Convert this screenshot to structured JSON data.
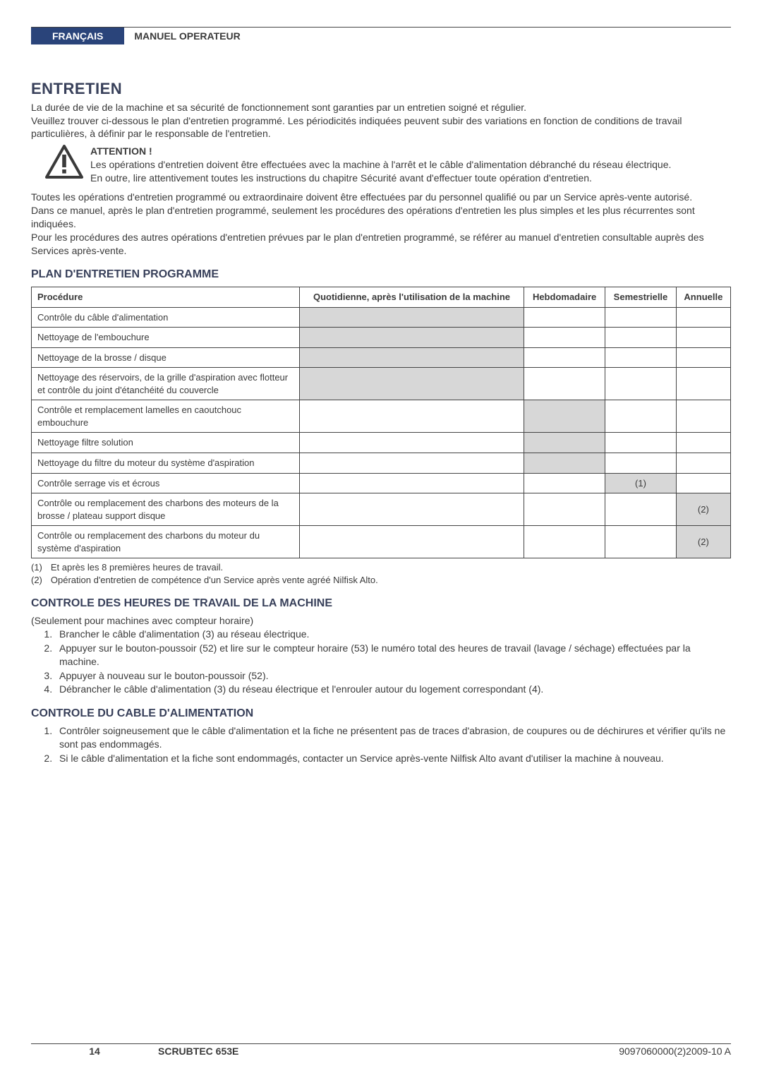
{
  "header": {
    "language_tab": "FRANÇAIS",
    "manual_title": "MANUEL OPERATEUR"
  },
  "section1": {
    "title": "ENTRETIEN",
    "p1": "La durée de vie de la machine et sa sécurité de fonctionnement sont garanties par un entretien soigné et régulier.",
    "p2": "Veuillez trouver ci-dessous le plan d'entretien programmé. Les périodicités indiquées peuvent subir des variations en fonction de conditions de travail particulières, à définir par le responsable de l'entretien."
  },
  "attention": {
    "label": "ATTENTION !",
    "line1": "Les opérations d'entretien doivent être effectuées avec la machine à l'arrêt et le câble d'alimentation débranché du réseau électrique.",
    "line2": "En outre, lire attentivement toutes les instructions du chapitre Sécurité avant d'effectuer toute opération d'entretien.",
    "icon_stroke": "#3a3a3a",
    "icon_fill": "#ffffff"
  },
  "post_attention": {
    "p1": "Toutes les opérations d'entretien programmé ou extraordinaire doivent être effectuées par du personnel qualifié ou par un Service après-vente autorisé.",
    "p2": "Dans ce manuel, après le plan d'entretien programmé, seulement les procédures des opérations d'entretien les plus simples et les plus récurrentes sont indiquées.",
    "p3": "Pour les procédures des autres opérations d'entretien prévues par le plan d'entretien programmé, se référer au manuel d'entretien consultable auprès des Services après-vente."
  },
  "plan": {
    "title": "PLAN D'ENTRETIEN PROGRAMME",
    "columns": {
      "proc": "Procédure",
      "c1": "Quotidienne, après l'utilisation de la machine",
      "c2": "Hebdomadaire",
      "c3": "Semestrielle",
      "c4": "Annuelle"
    },
    "rows": [
      {
        "proc": "Contrôle du câble d'alimentation",
        "c1": true,
        "c2": false,
        "c3": "",
        "c4": ""
      },
      {
        "proc": "Nettoyage de l'embouchure",
        "c1": true,
        "c2": false,
        "c3": "",
        "c4": ""
      },
      {
        "proc": "Nettoyage de la brosse / disque",
        "c1": true,
        "c2": false,
        "c3": "",
        "c4": ""
      },
      {
        "proc": "Nettoyage des réservoirs, de la grille d'aspiration avec flotteur et contrôle du joint d'étanchéité du couvercle",
        "c1": true,
        "c2": false,
        "c3": "",
        "c4": ""
      },
      {
        "proc": "Contrôle et remplacement lamelles en caoutchouc embouchure",
        "c1": false,
        "c2": true,
        "c3": "",
        "c4": ""
      },
      {
        "proc": "Nettoyage filtre solution",
        "c1": false,
        "c2": true,
        "c3": "",
        "c4": ""
      },
      {
        "proc": "Nettoyage du filtre du moteur du système d'aspiration",
        "c1": false,
        "c2": true,
        "c3": "",
        "c4": ""
      },
      {
        "proc": "Contrôle serrage vis et écrous",
        "c1": false,
        "c2": false,
        "c3": "(1)",
        "c4": ""
      },
      {
        "proc": "Contrôle ou remplacement des charbons des moteurs de la brosse / plateau support disque",
        "c1": false,
        "c2": false,
        "c3": "",
        "c4": "(2)"
      },
      {
        "proc": "Contrôle ou remplacement des charbons du moteur du système d'aspiration",
        "c1": false,
        "c2": false,
        "c3": "",
        "c4": "(2)"
      }
    ],
    "footnotes": [
      {
        "n": "(1)",
        "t": "Et après les 8 premières heures de travail."
      },
      {
        "n": "(2)",
        "t": "Opération d'entretien de compétence d'un Service après vente agréé Nilfisk Alto."
      }
    ],
    "mark_bg": "#d7d7d7"
  },
  "section_hours": {
    "title": "CONTROLE DES HEURES DE TRAVAIL DE LA MACHINE",
    "intro": "(Seulement pour machines avec compteur horaire)",
    "steps": [
      "Brancher le câble d'alimentation (3) au réseau électrique.",
      "Appuyer sur le bouton-poussoir (52) et lire sur le compteur horaire (53) le numéro total des heures de travail (lavage / séchage) effectuées par la machine.",
      "Appuyer à nouveau sur le bouton-poussoir (52).",
      "Débrancher le câble d'alimentation (3) du réseau électrique et l'enrouler autour du logement correspondant (4)."
    ]
  },
  "section_cable": {
    "title": "CONTROLE DU CABLE D'ALIMENTATION",
    "steps": [
      "Contrôler soigneusement que le câble d'alimentation et la fiche ne présentent pas de traces d'abrasion, de coupures ou de déchirures et vérifier qu'ils ne sont pas endommagés.",
      "Si le câble d'alimentation et la fiche sont endommagés, contacter un Service après-vente Nilfisk Alto avant d'utiliser la machine à nouveau."
    ]
  },
  "footer": {
    "page": "14",
    "model": "SCRUBTEC 653E",
    "docref": "9097060000(2)2009-10 A"
  }
}
